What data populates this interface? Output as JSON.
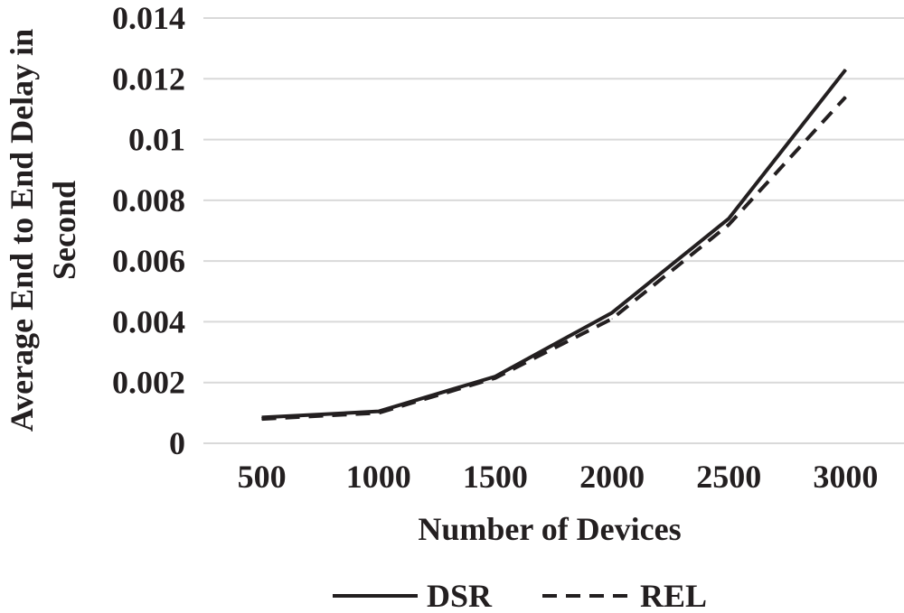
{
  "chart_data": {
    "type": "line",
    "title": "",
    "xlabel": "Number of Devices",
    "ylabel_lines": [
      "Average End to End Delay in",
      "Second"
    ],
    "categories": [
      "500",
      "1000",
      "1500",
      "2000",
      "2500",
      "3000"
    ],
    "y_ticks": [
      "0",
      "0.002",
      "0.004",
      "0.006",
      "0.008",
      "0.01",
      "0.012",
      "0.014"
    ],
    "ylim": [
      0,
      0.014
    ],
    "grid": true,
    "legend_position": "bottom",
    "series": [
      {
        "name": "DSR",
        "style": "solid",
        "color": "#231f20",
        "values": [
          0.00085,
          0.00105,
          0.0022,
          0.0043,
          0.0074,
          0.0123
        ]
      },
      {
        "name": "REL",
        "style": "dashed",
        "color": "#231f20",
        "values": [
          0.0008,
          0.001,
          0.00215,
          0.0041,
          0.0072,
          0.0114
        ]
      }
    ]
  }
}
